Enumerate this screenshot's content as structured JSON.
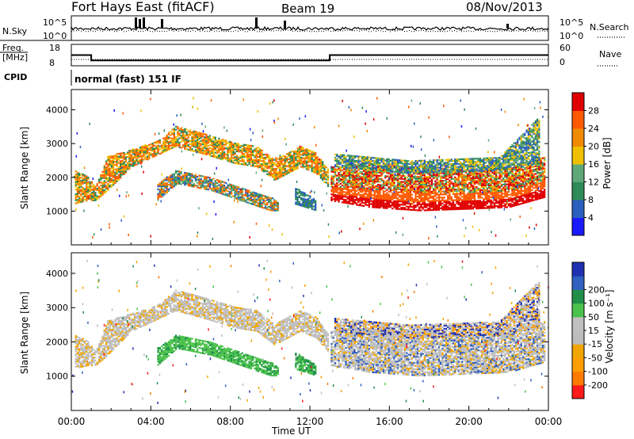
{
  "header": {
    "station": "Fort Hays East (fitACF)",
    "beam": "Beam 19",
    "date": "08/Nov/2013"
  },
  "top_panels": {
    "nsky_label": "N.Sky",
    "nsky_ticks": [
      "10^5",
      "10^0"
    ],
    "nsearch_label": "N.Search",
    "nsearch_ticks": [
      "10^5",
      "10^0"
    ],
    "freq_label_1": "Freq.",
    "freq_label_2": "[MHz]",
    "freq_ticks": [
      "18",
      "8"
    ],
    "nave_label": "Nave",
    "nave_ticks": [
      "60",
      "0"
    ],
    "cpid_label": "CPID",
    "cpid_text": "normal (fast) 151 IF"
  },
  "colors": {
    "power": [
      "#1a1aff",
      "#2a5fbf",
      "#2e8b57",
      "#5fa877",
      "#f0c000",
      "#f08a00",
      "#ff5a00",
      "#e00000"
    ],
    "velocity": [
      "#ff1a1a",
      "#ff7a00",
      "#ff9e00",
      "#f0a500",
      "#bdbdbd",
      "#c0c0c0",
      "#4bc24b",
      "#1f8f4a",
      "#3060c0",
      "#2030b0"
    ]
  },
  "chart_data": [
    {
      "type": "heatmap",
      "name": "power",
      "xlabel": "",
      "ylabel": "Slant Range [km]",
      "yticks": [
        "1000",
        "2000",
        "3000",
        "4000"
      ],
      "ylim": [
        0,
        4600
      ],
      "xlim_hours": [
        0,
        24
      ],
      "colorbar_label": "Power [dB]",
      "colorbar_ticks": [
        "4",
        "8",
        "12",
        "16",
        "20",
        "24",
        "28"
      ],
      "colorbar_range": [
        0,
        32
      ]
    },
    {
      "type": "heatmap",
      "name": "velocity",
      "xlabel": "Time UT",
      "ylabel": "Slant Range [km]",
      "yticks": [
        "1000",
        "2000",
        "3000",
        "4000"
      ],
      "ylim": [
        0,
        4600
      ],
      "xlim_hours": [
        0,
        24
      ],
      "xticks": [
        "00:00",
        "04:00",
        "08:00",
        "12:00",
        "16:00",
        "20:00",
        "00:00"
      ],
      "colorbar_label": "Velocity [m s⁻¹]",
      "colorbar_ticks": [
        "-200",
        "-100",
        "-50",
        "-15",
        "15",
        "50",
        "100",
        "200"
      ]
    },
    {
      "type": "line",
      "name": "frequency",
      "x_hours": [
        0,
        1,
        1,
        13,
        13,
        24
      ],
      "y_mhz": [
        13,
        13,
        10.5,
        10.5,
        13,
        13
      ],
      "ylim": [
        8,
        18
      ]
    }
  ]
}
